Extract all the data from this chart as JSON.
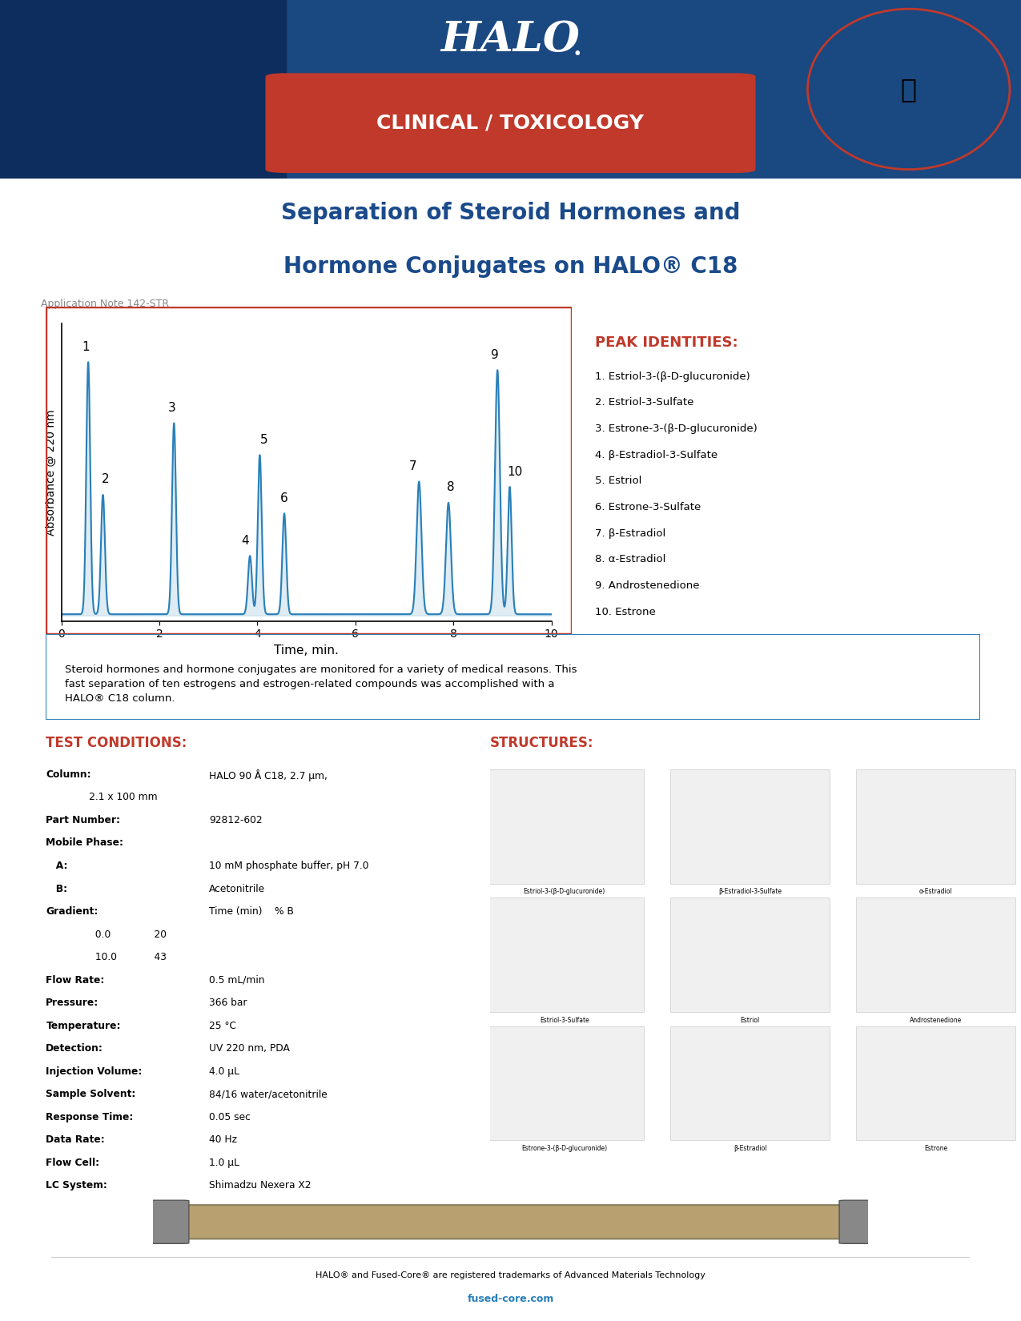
{
  "title_line1": "Separation of Steroid Hormones and",
  "title_line2": "Hormone Conjugates on HALO® C18",
  "app_note": "Application Note 142-STR",
  "header_bg_color": "#1a4a8a",
  "header_red_color": "#c0392b",
  "clinical_toxicology_text": "CLINICAL / TOXICOLOGY",
  "chromatogram_xlabel": "Time, min.",
  "chromatogram_ylabel": "Absorbance @ 220 nm",
  "peak_times": [
    0.55,
    0.85,
    2.3,
    3.85,
    4.05,
    4.55,
    7.3,
    7.9,
    8.9,
    9.15
  ],
  "peak_heights": [
    0.95,
    0.45,
    0.72,
    0.22,
    0.6,
    0.38,
    0.5,
    0.42,
    0.92,
    0.48
  ],
  "peak_labels": [
    "1",
    "2",
    "3",
    "4",
    "5",
    "6",
    "7",
    "8",
    "9",
    "10"
  ],
  "peak_label_offsets_y": [
    0.03,
    0.03,
    0.03,
    0.03,
    0.03,
    0.03,
    0.03,
    0.03,
    0.03,
    0.03
  ],
  "peak_color": "#2980b9",
  "xmin": 0,
  "xmax": 10,
  "xticks": [
    0,
    2,
    4,
    6,
    8,
    10
  ],
  "peak_identities_title": "PEAK IDENTITIES:",
  "peak_identities": [
    "1. Estriol-3-(β-D-glucuronide)",
    "2. Estriol-3-Sulfate",
    "3. Estrone-3-(β-D-glucuronide)",
    "4. β-Estradiol-3-Sulfate",
    "5. Estriol",
    "6. Estrone-3-Sulfate",
    "7. β-Estradiol",
    "8. α-Estradiol",
    "9. Androstenedione",
    "10. Estrone"
  ],
  "description": "Steroid hormones and hormone conjugates are monitored for a variety of medical reasons. This\nfast separation of ten estrogens and estrogen-related compounds was accomplished with a\nHALO® C18 column.",
  "test_conditions_title": "TEST CONDITIONS:",
  "test_conditions": [
    [
      "Column:",
      "HALO 90 Å C18, 2.7 μm,\n       2.1 x 100 mm"
    ],
    [
      "Part Number:",
      "92812-602"
    ],
    [
      "Mobile Phase:",
      ""
    ],
    [
      "  A:",
      "10 mM phosphate buffer, pH 7.0"
    ],
    [
      "  B:",
      "Acetonitrile"
    ],
    [
      "Gradient:",
      "Time (min)    % B\n           0.0              20\n           10.0            43"
    ],
    [
      "Flow Rate:",
      "0.5 mL/min"
    ],
    [
      "Pressure:",
      "366 bar"
    ],
    [
      "Temperature:",
      "25 °C"
    ],
    [
      "Detection:",
      "UV 220 nm, PDA"
    ],
    [
      "Injection Volume:",
      "4.0 μL"
    ],
    [
      "Sample Solvent:",
      "84/16 water/acetonitrile"
    ],
    [
      "Response Time:",
      "0.05 sec"
    ],
    [
      "Data Rate:",
      "40 Hz"
    ],
    [
      "Flow Cell:",
      "1.0 μL"
    ],
    [
      "LC System:",
      "Shimadzu Nexera X2"
    ]
  ],
  "structures_title": "STRUCTURES:",
  "footer_text1": "HALO® and Fused-Core® are registered trademarks of Advanced Materials Technology",
  "footer_text2": "fused-core.com",
  "footer_link_color": "#2980b9",
  "title_color": "#1a4a8a",
  "peak_id_title_color": "#c0392b",
  "test_cond_title_color": "#c0392b",
  "structures_title_color": "#c0392b",
  "box_border_color": "#c0392b",
  "desc_box_border_color": "#2980b9",
  "background_color": "#ffffff"
}
